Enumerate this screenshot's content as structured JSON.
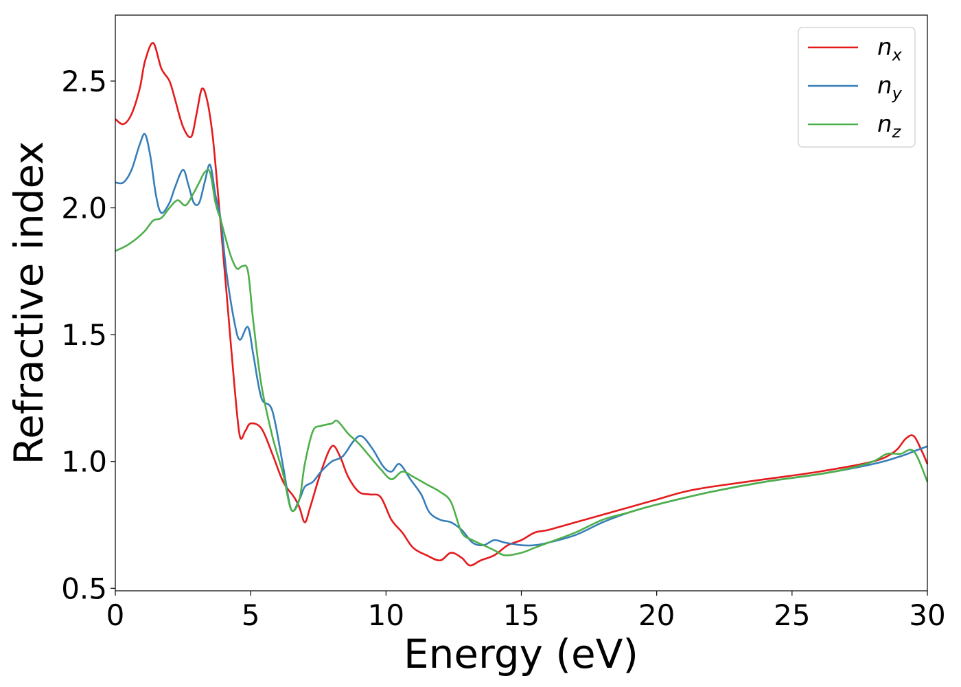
{
  "chart_data": {
    "type": "line",
    "xlabel": "Energy (eV)",
    "ylabel": "Refractive index",
    "xlim": [
      0,
      30
    ],
    "ylim": [
      0.49,
      2.76
    ],
    "xticks": [
      0,
      5,
      10,
      15,
      20,
      25,
      30
    ],
    "xtick_labels": [
      "0",
      "5",
      "10",
      "15",
      "20",
      "25",
      "30"
    ],
    "yticks": [
      0.5,
      1.0,
      1.5,
      2.0,
      2.5
    ],
    "ytick_labels": [
      "0.5",
      "1.0",
      "1.5",
      "2.0",
      "2.5"
    ],
    "grid": false,
    "legend_position": "top-right",
    "series": [
      {
        "name": "n",
        "subscript": "x",
        "color": "#e41a1c",
        "x": [
          0,
          0.3,
          0.6,
          0.9,
          1.1,
          1.4,
          1.7,
          2.0,
          2.2,
          2.5,
          2.8,
          3.0,
          3.2,
          3.4,
          3.6,
          3.8,
          4.0,
          4.2,
          4.4,
          4.6,
          4.8,
          5.0,
          5.4,
          5.8,
          6.2,
          6.6,
          6.8,
          7.0,
          7.2,
          7.6,
          8.0,
          8.3,
          8.6,
          9.0,
          9.4,
          9.8,
          10.2,
          10.6,
          11.0,
          11.5,
          12.0,
          12.4,
          12.8,
          13.1,
          13.5,
          14.0,
          14.5,
          15.0,
          15.5,
          16.0,
          17.0,
          18.0,
          19.0,
          20.0,
          21.0,
          22.0,
          24.0,
          26.0,
          28.0,
          28.8,
          29.2,
          29.5,
          29.8,
          30.0
        ],
        "values": [
          2.35,
          2.33,
          2.37,
          2.47,
          2.58,
          2.65,
          2.55,
          2.5,
          2.43,
          2.32,
          2.28,
          2.37,
          2.47,
          2.42,
          2.28,
          2.05,
          1.8,
          1.55,
          1.3,
          1.1,
          1.12,
          1.15,
          1.13,
          1.03,
          0.92,
          0.86,
          0.82,
          0.76,
          0.82,
          0.96,
          1.06,
          1.02,
          0.94,
          0.88,
          0.87,
          0.86,
          0.77,
          0.72,
          0.66,
          0.63,
          0.61,
          0.64,
          0.62,
          0.59,
          0.61,
          0.63,
          0.67,
          0.69,
          0.72,
          0.73,
          0.76,
          0.79,
          0.82,
          0.85,
          0.88,
          0.9,
          0.93,
          0.96,
          1.0,
          1.04,
          1.09,
          1.1,
          1.04,
          0.99
        ]
      },
      {
        "name": "n",
        "subscript": "y",
        "color": "#377eb8",
        "x": [
          0,
          0.3,
          0.6,
          0.9,
          1.1,
          1.3,
          1.5,
          1.7,
          2.0,
          2.2,
          2.5,
          2.7,
          2.9,
          3.1,
          3.3,
          3.5,
          3.7,
          3.9,
          4.1,
          4.4,
          4.6,
          4.9,
          5.1,
          5.4,
          5.8,
          6.2,
          6.5,
          6.8,
          7.0,
          7.3,
          7.6,
          8.0,
          8.4,
          8.8,
          9.1,
          9.5,
          9.9,
          10.2,
          10.5,
          10.9,
          11.3,
          11.6,
          12.0,
          12.4,
          12.8,
          13.2,
          13.6,
          14.0,
          14.4,
          15.0,
          15.5,
          16.0,
          17.0,
          18.0,
          19.0,
          20.0,
          22.0,
          24.0,
          26.0,
          28.0,
          29.0,
          29.5,
          30.0
        ],
        "values": [
          2.1,
          2.1,
          2.15,
          2.25,
          2.29,
          2.2,
          2.05,
          1.98,
          2.02,
          2.08,
          2.15,
          2.09,
          2.02,
          2.02,
          2.1,
          2.17,
          2.05,
          1.95,
          1.75,
          1.55,
          1.48,
          1.53,
          1.42,
          1.25,
          1.2,
          0.98,
          0.81,
          0.85,
          0.9,
          0.92,
          0.96,
          1.0,
          1.02,
          1.08,
          1.1,
          1.05,
          0.98,
          0.96,
          0.99,
          0.93,
          0.87,
          0.8,
          0.77,
          0.76,
          0.73,
          0.68,
          0.67,
          0.69,
          0.68,
          0.67,
          0.67,
          0.68,
          0.71,
          0.76,
          0.8,
          0.83,
          0.88,
          0.92,
          0.95,
          0.99,
          1.02,
          1.04,
          1.06
        ]
      },
      {
        "name": "n",
        "subscript": "z",
        "color": "#4daf4a",
        "x": [
          0,
          0.4,
          0.8,
          1.1,
          1.4,
          1.7,
          2.0,
          2.3,
          2.6,
          2.9,
          3.1,
          3.3,
          3.5,
          3.7,
          3.9,
          4.1,
          4.3,
          4.5,
          4.7,
          4.9,
          5.1,
          5.4,
          5.8,
          6.2,
          6.5,
          6.8,
          7.0,
          7.3,
          7.6,
          8.0,
          8.2,
          8.6,
          9.0,
          9.4,
          9.8,
          10.2,
          10.6,
          11.0,
          11.5,
          12.0,
          12.4,
          12.8,
          13.2,
          13.6,
          14.0,
          14.4,
          15.0,
          15.5,
          16.0,
          17.0,
          18.0,
          19.0,
          20.0,
          22.0,
          24.0,
          26.0,
          27.0,
          28.0,
          28.5,
          29.0,
          29.5,
          30.0
        ],
        "values": [
          1.83,
          1.85,
          1.88,
          1.91,
          1.95,
          1.96,
          2.0,
          2.03,
          2.01,
          2.06,
          2.1,
          2.14,
          2.14,
          2.02,
          1.95,
          1.87,
          1.8,
          1.76,
          1.77,
          1.75,
          1.55,
          1.3,
          1.1,
          0.95,
          0.81,
          0.85,
          0.99,
          1.12,
          1.14,
          1.15,
          1.16,
          1.11,
          1.07,
          1.02,
          0.97,
          0.93,
          0.96,
          0.94,
          0.91,
          0.88,
          0.84,
          0.72,
          0.69,
          0.67,
          0.65,
          0.63,
          0.64,
          0.66,
          0.68,
          0.72,
          0.77,
          0.8,
          0.83,
          0.88,
          0.92,
          0.95,
          0.97,
          1.0,
          1.03,
          1.03,
          1.04,
          0.92
        ]
      }
    ]
  }
}
